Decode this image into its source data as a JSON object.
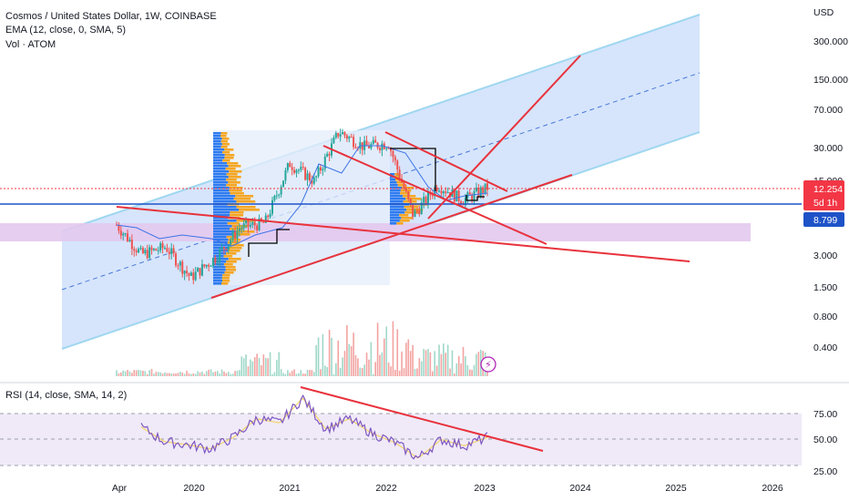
{
  "legend": {
    "title": "Cosmos / United States Dollar, 1W, COINBASE",
    "ema": "EMA (12, close, 0, SMA, 5)",
    "vol": "Vol · ATOM",
    "rsi": "RSI (14, close, SMA, 14, 2)"
  },
  "price_axis": {
    "currency": "USD",
    "ticks": [
      "300.000",
      "150.000",
      "70.000",
      "30.000",
      "15.000",
      "3.000",
      "1.500",
      "0.800",
      "0.400"
    ],
    "last_price": "12.254",
    "countdown": "5d 1h",
    "hline_price": "8.799"
  },
  "rsi_axis": {
    "ticks": [
      "75.00",
      "50.00",
      "25.00"
    ]
  },
  "time_axis": {
    "ticks": [
      "Apr",
      "2020",
      "2021",
      "2022",
      "2023",
      "2024",
      "2025",
      "2026"
    ]
  },
  "colors": {
    "channel_fill": "#cfe0fb",
    "channel_edge": "#9fd7f0",
    "trendline": "#e8323c",
    "hline": "#1e53c8",
    "zone": "#e3c9ee",
    "candle_up": "#26a69a",
    "candle_down": "#ef5350",
    "ema": "#3d73e6",
    "vp_blue": "#2f7bf0",
    "vp_orange": "#f5a623",
    "rsi_line": "#7e57c2",
    "rsi_ma": "#f3d36a",
    "rsi_band": "#f0eaf8",
    "last_tag": "#f23645",
    "hline_tag": "#1e53c8"
  },
  "chart_data": {
    "type": "line",
    "title": "Cosmos / United States Dollar, 1W, COINBASE",
    "scale": "log",
    "ylabel": "USD",
    "x": [
      "2019-06",
      "2019-09",
      "2019-12",
      "2020-03",
      "2020-06",
      "2020-09",
      "2020-12",
      "2021-03",
      "2021-06",
      "2021-09",
      "2021-12",
      "2022-03",
      "2022-06",
      "2022-09",
      "2022-12",
      "2023-01"
    ],
    "series": [
      {
        "name": "ATOM",
        "values": [
          5.8,
          3.2,
          3.7,
          2.0,
          3.0,
          5.5,
          6.0,
          20.0,
          14.0,
          38.0,
          28.0,
          30.0,
          7.0,
          13.0,
          9.5,
          12.254
        ]
      }
    ],
    "rsi": [
      62,
      48,
      45,
      41,
      52,
      70,
      66,
      90,
      60,
      70,
      56,
      47,
      32,
      50,
      44,
      52
    ],
    "rsi_ylim": [
      25,
      80
    ],
    "ylim": [
      0.3,
      400
    ],
    "levels": {
      "last": 12.254,
      "hline": 8.799
    }
  }
}
